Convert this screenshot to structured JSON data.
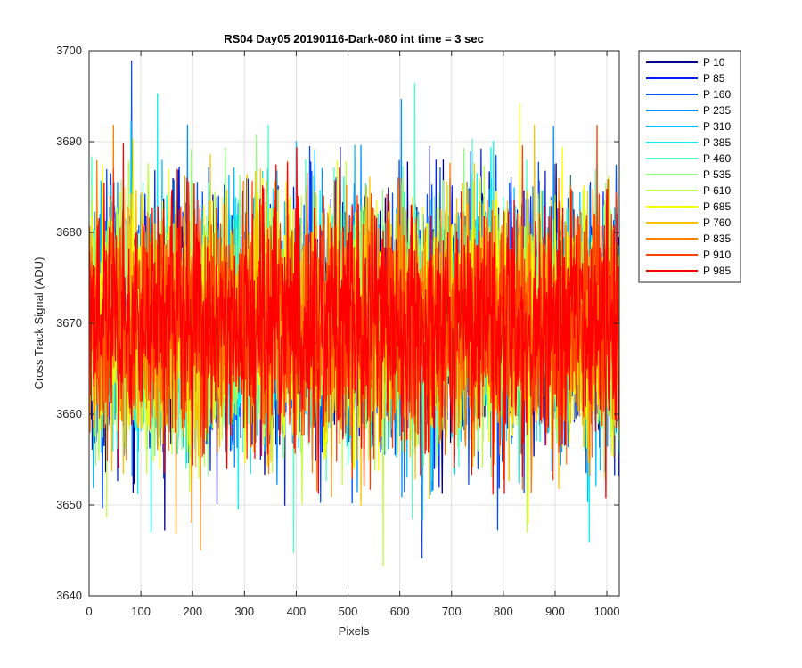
{
  "chart_data": {
    "type": "line",
    "title": "RS04 Day05 20190116-Dark-080 int time = 3 sec",
    "xlabel": "Pixels",
    "ylabel": "Cross Track Signal (ADU)",
    "xlim": [
      0,
      1024
    ],
    "ylim": [
      3640,
      3700
    ],
    "xticks": [
      0,
      100,
      200,
      300,
      400,
      500,
      600,
      700,
      800,
      900,
      1000
    ],
    "yticks": [
      3640,
      3650,
      3660,
      3670,
      3680,
      3690,
      3700
    ],
    "grid": true,
    "legend_position": "outside-top-right",
    "noise_model": {
      "mean": 3670,
      "sigma": 6.5,
      "points_per_series": 1024
    },
    "series": [
      {
        "name": "P 10",
        "color": "#00008f"
      },
      {
        "name": "P 85",
        "color": "#0020ff"
      },
      {
        "name": "P 160",
        "color": "#0050ff"
      },
      {
        "name": "P 235",
        "color": "#0090ff"
      },
      {
        "name": "P 310",
        "color": "#00c0ff"
      },
      {
        "name": "P 385",
        "color": "#10f0f0"
      },
      {
        "name": "P 460",
        "color": "#50ffc0"
      },
      {
        "name": "P 535",
        "color": "#90ff80"
      },
      {
        "name": "P 610",
        "color": "#c0ff40"
      },
      {
        "name": "P 685",
        "color": "#ffff00"
      },
      {
        "name": "P 760",
        "color": "#ffc000"
      },
      {
        "name": "P 835",
        "color": "#ff8000"
      },
      {
        "name": "P 910",
        "color": "#ff4000"
      },
      {
        "name": "P 985",
        "color": "#ff0000"
      }
    ]
  }
}
